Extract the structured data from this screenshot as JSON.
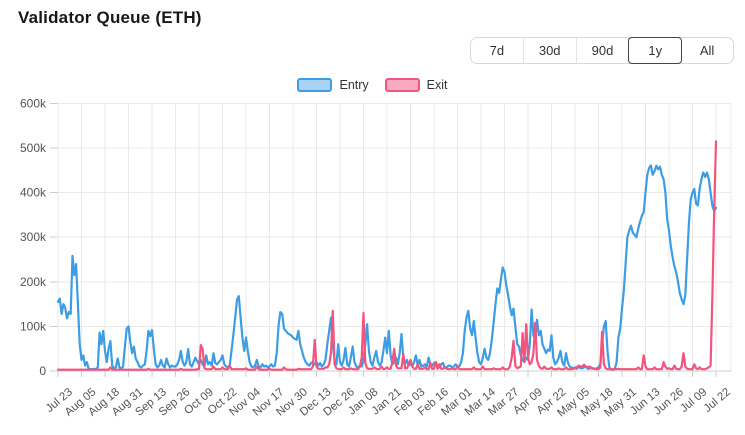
{
  "page": {
    "title": "Validator Queue (ETH)"
  },
  "toolbar": {
    "buttons": [
      {
        "label": "7d",
        "active": false
      },
      {
        "label": "30d",
        "active": false
      },
      {
        "label": "90d",
        "active": false
      },
      {
        "label": "1y",
        "active": true
      },
      {
        "label": "All",
        "active": false
      }
    ]
  },
  "legend": [
    {
      "label": "Entry",
      "stroke": "#3d9de2",
      "fill": "#a8d3f2"
    },
    {
      "label": "Exit",
      "stroke": "#f2547e",
      "fill": "#f7aabf"
    }
  ],
  "colors": {
    "grid": "#e9e9e9",
    "axis": "#cfcfcf",
    "tick": "#cccccc",
    "axis_text": "#555555",
    "title_text": "#15181c",
    "entry": "#3d9de2",
    "exit": "#f2547e"
  },
  "chart_data": {
    "type": "line",
    "title": "Validator Queue (ETH)",
    "grid": true,
    "legend_position": "top-center",
    "ylabel": "",
    "xlabel": "",
    "ylim_thousands": [
      0,
      600
    ],
    "y_ticks": [
      {
        "label": "0",
        "value": 0
      },
      {
        "label": "100k",
        "value": 100
      },
      {
        "label": "200k",
        "value": 200
      },
      {
        "label": "300k",
        "value": 300
      },
      {
        "label": "400k",
        "value": 400
      },
      {
        "label": "500k",
        "value": 500
      },
      {
        "label": "600k",
        "value": 600
      }
    ],
    "x_ticks": [
      {
        "label": "Jul 23",
        "day": 0
      },
      {
        "label": "Aug 05",
        "day": 13
      },
      {
        "label": "Aug 18",
        "day": 26
      },
      {
        "label": "Aug 31",
        "day": 39
      },
      {
        "label": "Sep 13",
        "day": 52
      },
      {
        "label": "Sep 26",
        "day": 65
      },
      {
        "label": "Oct 09",
        "day": 78
      },
      {
        "label": "Oct 22",
        "day": 91
      },
      {
        "label": "Nov 04",
        "day": 104
      },
      {
        "label": "Nov 17",
        "day": 117
      },
      {
        "label": "Nov 30",
        "day": 130
      },
      {
        "label": "Dec 13",
        "day": 143
      },
      {
        "label": "Dec 26",
        "day": 156
      },
      {
        "label": "Jan 08",
        "day": 169
      },
      {
        "label": "Jan 21",
        "day": 182
      },
      {
        "label": "Feb 03",
        "day": 195
      },
      {
        "label": "Feb 16",
        "day": 208
      },
      {
        "label": "Mar 01",
        "day": 221
      },
      {
        "label": "Mar 14",
        "day": 234
      },
      {
        "label": "Mar 27",
        "day": 247
      },
      {
        "label": "Apr 09",
        "day": 260
      },
      {
        "label": "Apr 22",
        "day": 273
      },
      {
        "label": "May 05",
        "day": 286
      },
      {
        "label": "May 18",
        "day": 299
      },
      {
        "label": "May 31",
        "day": 312
      },
      {
        "label": "Jun 13",
        "day": 325
      },
      {
        "label": "Jun 26",
        "day": 338
      },
      {
        "label": "Jul 09",
        "day": 351
      },
      {
        "label": "Jul 22",
        "day": 364
      }
    ],
    "series": [
      {
        "name": "Entry",
        "color": "#3d9de2",
        "unit": "ETH (thousands)",
        "values_thousands": [
          155,
          162,
          128,
          150,
          142,
          118,
          132,
          128,
          258,
          215,
          240,
          150,
          60,
          25,
          35,
          12,
          20,
          5,
          4,
          4,
          5,
          4,
          8,
          86,
          60,
          90,
          45,
          20,
          50,
          67,
          12,
          5,
          8,
          28,
          8,
          5,
          10,
          55,
          95,
          100,
          65,
          40,
          55,
          28,
          20,
          10,
          8,
          12,
          15,
          45,
          90,
          78,
          92,
          50,
          15,
          8,
          12,
          25,
          12,
          8,
          28,
          15,
          8,
          12,
          10,
          10,
          15,
          25,
          45,
          20,
          12,
          20,
          49,
          15,
          10,
          20,
          30,
          22,
          15,
          25,
          15,
          10,
          35,
          15,
          20,
          12,
          40,
          18,
          15,
          20,
          25,
          35,
          15,
          10,
          8,
          12,
          45,
          80,
          120,
          160,
          168,
          120,
          75,
          45,
          75,
          45,
          20,
          10,
          8,
          12,
          25,
          10,
          8,
          15,
          10,
          12,
          8,
          10,
          15,
          10,
          12,
          40,
          100,
          132,
          128,
          95,
          90,
          85,
          82,
          80,
          75,
          72,
          70,
          90,
          60,
          45,
          30,
          20,
          15,
          12,
          18,
          20,
          15,
          20,
          12,
          18,
          10,
          15,
          25,
          60,
          90,
          120,
          60,
          25,
          15,
          60,
          20,
          12,
          25,
          52,
          15,
          10,
          30,
          55,
          20,
          10,
          8,
          12,
          10,
          25,
          60,
          105,
          45,
          20,
          12,
          30,
          45,
          20,
          12,
          20,
          45,
          75,
          40,
          90,
          35,
          15,
          20,
          30,
          15,
          40,
          83,
          30,
          15,
          25,
          12,
          18,
          10,
          20,
          35,
          12,
          25,
          10,
          12,
          15,
          10,
          30,
          15,
          12,
          18,
          20,
          10,
          8,
          15,
          18,
          8,
          8,
          12,
          12,
          8,
          10,
          15,
          10,
          10,
          20,
          40,
          90,
          120,
          135,
          95,
          80,
          112,
          75,
          40,
          20,
          15,
          30,
          50,
          30,
          25,
          40,
          70,
          110,
          150,
          185,
          175,
          205,
          232,
          222,
          192,
          170,
          145,
          125,
          140,
          100,
          60,
          55,
          35,
          25,
          20,
          30,
          25,
          60,
          138,
          80,
          70,
          115,
          80,
          90,
          60,
          50,
          40,
          48,
          45,
          80,
          30,
          15,
          20,
          30,
          45,
          20,
          12,
          40,
          20,
          10,
          8,
          6,
          8,
          5,
          10,
          6,
          6,
          8,
          10,
          5,
          5,
          8,
          6,
          5,
          6,
          8,
          15,
          60,
          100,
          112,
          45,
          8,
          4,
          3,
          5,
          20,
          75,
          95,
          140,
          180,
          240,
          300,
          315,
          326,
          310,
          305,
          300,
          320,
          335,
          348,
          356,
          400,
          440,
          455,
          461,
          440,
          448,
          460,
          452,
          458,
          440,
          430,
          400,
          340,
          315,
          280,
          255,
          235,
          221,
          200,
          175,
          160,
          150,
          170,
          250,
          330,
          385,
          400,
          408,
          375,
          371,
          410,
          430,
          445,
          435,
          445,
          430,
          400,
          370,
          358,
          366
        ]
      },
      {
        "name": "Exit",
        "color": "#f2547e",
        "unit": "ETH (thousands)",
        "values_thousands": [
          3,
          3,
          3,
          3,
          3,
          3,
          3,
          3,
          3,
          3,
          3,
          3,
          3,
          3,
          3,
          3,
          3,
          3,
          3,
          3,
          3,
          3,
          3,
          3,
          3,
          3,
          3,
          3,
          3,
          8,
          3,
          3,
          3,
          3,
          3,
          3,
          3,
          3,
          3,
          3,
          3,
          3,
          3,
          3,
          3,
          3,
          3,
          3,
          3,
          3,
          5,
          3,
          3,
          3,
          3,
          3,
          3,
          3,
          3,
          3,
          3,
          3,
          3,
          3,
          3,
          3,
          3,
          3,
          5,
          3,
          3,
          3,
          3,
          3,
          3,
          3,
          3,
          4,
          4,
          58,
          50,
          6,
          4,
          4,
          4,
          4,
          10,
          4,
          4,
          4,
          4,
          8,
          4,
          4,
          4,
          12,
          4,
          4,
          4,
          4,
          4,
          4,
          4,
          4,
          6,
          3,
          3,
          3,
          3,
          3,
          10,
          4,
          3,
          3,
          3,
          3,
          3,
          5,
          3,
          3,
          3,
          3,
          3,
          3,
          3,
          8,
          4,
          3,
          3,
          3,
          3,
          3,
          3,
          5,
          4,
          4,
          4,
          4,
          4,
          4,
          4,
          10,
          70,
          10,
          5,
          5,
          5,
          5,
          8,
          8,
          15,
          40,
          135,
          15,
          6,
          4,
          4,
          4,
          8,
          4,
          4,
          4,
          6,
          4,
          4,
          4,
          4,
          10,
          30,
          130,
          18,
          6,
          5,
          5,
          5,
          8,
          5,
          4,
          5,
          10,
          4,
          5,
          8,
          5,
          5,
          20,
          50,
          12,
          6,
          6,
          6,
          38,
          6,
          6,
          15,
          25,
          10,
          5,
          5,
          15,
          5,
          5,
          5,
          8,
          4,
          4,
          18,
          5,
          5,
          20,
          5,
          15,
          5,
          5,
          8,
          5,
          4,
          4,
          6,
          4,
          4,
          10,
          4,
          4,
          4,
          4,
          4,
          4,
          4,
          4,
          8,
          4,
          4,
          4,
          4,
          10,
          4,
          4,
          4,
          4,
          4,
          6,
          4,
          4,
          4,
          4,
          8,
          4,
          4,
          4,
          10,
          30,
          68,
          12,
          6,
          8,
          10,
          85,
          20,
          105,
          30,
          15,
          20,
          40,
          108,
          25,
          12,
          6,
          5,
          10,
          5,
          5,
          5,
          8,
          4,
          4,
          4,
          6,
          4,
          4,
          4,
          8,
          4,
          4,
          4,
          5,
          6,
          8,
          12,
          10,
          10,
          14,
          10,
          8,
          10,
          6,
          5,
          5,
          4,
          4,
          8,
          88,
          15,
          6,
          4,
          4,
          4,
          4,
          4,
          4,
          5,
          4,
          4,
          4,
          4,
          4,
          4,
          4,
          4,
          4,
          4,
          8,
          4,
          4,
          35,
          10,
          4,
          4,
          4,
          4,
          8,
          4,
          4,
          4,
          4,
          20,
          10,
          5,
          6,
          4,
          4,
          12,
          5,
          4,
          4,
          10,
          40,
          10,
          5,
          4,
          4,
          4,
          15,
          6,
          4,
          8,
          4,
          4,
          4,
          6,
          8,
          12,
          170,
          360,
          515
        ]
      }
    ]
  }
}
